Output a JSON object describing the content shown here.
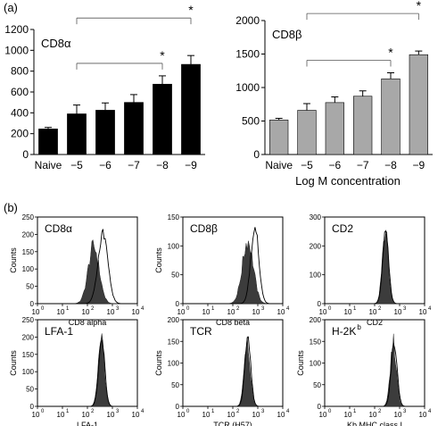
{
  "panel_labels": {
    "a": "(a)",
    "b": "(b)"
  },
  "colors": {
    "cd8a_bar": "#000000",
    "cd8b_bar": "#a8a8a8",
    "histogram_fill": "#3c3c3c",
    "line": "#000000"
  },
  "chart_data": [
    {
      "id": "cd8a_bar",
      "type": "bar",
      "title": "CD8α",
      "xlabel": "",
      "categories": [
        "Naive",
        "−5",
        "−6",
        "−7",
        "−8",
        "−9"
      ],
      "values": [
        245,
        390,
        425,
        500,
        675,
        865
      ],
      "errors": [
        15,
        85,
        70,
        75,
        80,
        85
      ],
      "ylim": [
        0,
        1200
      ],
      "yticks": [
        "0",
        "200",
        "400",
        "600",
        "800",
        "1000",
        "1200"
      ],
      "significance": [
        {
          "from": "−5",
          "to": "−8",
          "label": "*"
        },
        {
          "from": "−5",
          "to": "−9",
          "label": "*"
        }
      ]
    },
    {
      "id": "cd8b_bar",
      "type": "bar",
      "title": "CD8β",
      "xlabel": "Log M concentration",
      "categories": [
        "Naive",
        "−5",
        "−6",
        "−7",
        "−8",
        "−9"
      ],
      "values": [
        515,
        660,
        775,
        870,
        1130,
        1490
      ],
      "errors": [
        25,
        100,
        85,
        80,
        90,
        55
      ],
      "ylim": [
        0,
        2000
      ],
      "yticks": [
        "0",
        "500",
        "1000",
        "1500",
        "2000"
      ],
      "significance": [
        {
          "from": "−5",
          "to": "−8",
          "label": "*"
        },
        {
          "from": "−5",
          "to": "−9",
          "label": "*"
        }
      ]
    },
    {
      "id": "hist_cd8a",
      "type": "area",
      "title": "CD8α",
      "xlabel": "CD8 alpha",
      "ylabel": "Counts",
      "ylim": [
        0,
        250
      ],
      "yticks": [
        "0",
        "50",
        "100",
        "150",
        "200",
        "250"
      ],
      "xscale": "log",
      "xlim": [
        1,
        10000
      ],
      "xticks": [
        {
          "base": "10",
          "exp": "0"
        },
        {
          "base": "10",
          "exp": "1"
        },
        {
          "base": "10",
          "exp": "2"
        },
        {
          "base": "10",
          "exp": "3"
        },
        {
          "base": "10",
          "exp": "4"
        }
      ],
      "filled_peak": {
        "center": 2.25,
        "width": 0.22,
        "height": 170
      },
      "open_peak": {
        "center": 2.62,
        "width": 0.2,
        "height": 205
      }
    },
    {
      "id": "hist_cd8b",
      "type": "area",
      "title": "CD8β",
      "xlabel": "CD8 beta",
      "ylabel": "Counts",
      "ylim": [
        0,
        150
      ],
      "yticks": [
        "0",
        "50",
        "100",
        "150"
      ],
      "xscale": "log",
      "xlim": [
        1,
        10000
      ],
      "xticks": [
        {
          "base": "10",
          "exp": "0"
        },
        {
          "base": "10",
          "exp": "1"
        },
        {
          "base": "10",
          "exp": "2"
        },
        {
          "base": "10",
          "exp": "3"
        },
        {
          "base": "10",
          "exp": "4"
        }
      ],
      "filled_peak": {
        "center": 2.6,
        "width": 0.22,
        "height": 112
      },
      "open_peak": {
        "center": 2.88,
        "width": 0.16,
        "height": 135
      }
    },
    {
      "id": "hist_cd2",
      "type": "area",
      "title": "CD2",
      "xlabel": "CD2",
      "ylabel": "",
      "ylim": [
        0,
        300
      ],
      "yticks": [
        "0",
        "100",
        "200",
        "300"
      ],
      "xscale": "log",
      "xlim": [
        1,
        10000
      ],
      "xticks": [
        {
          "base": "10",
          "exp": "0"
        },
        {
          "base": "10",
          "exp": "1"
        },
        {
          "base": "10",
          "exp": "2"
        },
        {
          "base": "10",
          "exp": "3"
        },
        {
          "base": "10",
          "exp": "4"
        }
      ],
      "filled_peak": {
        "center": 2.42,
        "width": 0.12,
        "height": 265
      },
      "open_peak": {
        "center": 2.44,
        "width": 0.12,
        "height": 255
      }
    },
    {
      "id": "hist_lfa1",
      "type": "area",
      "title": "LFA-1",
      "xlabel": "LFA-1",
      "ylabel": "Counts",
      "ylim": [
        0,
        250
      ],
      "yticks": [
        "0",
        "50",
        "100",
        "150",
        "200",
        "250"
      ],
      "xscale": "log",
      "xlim": [
        1,
        10000
      ],
      "xticks": [
        {
          "base": "10",
          "exp": "0"
        },
        {
          "base": "10",
          "exp": "1"
        },
        {
          "base": "10",
          "exp": "2"
        },
        {
          "base": "10",
          "exp": "3"
        },
        {
          "base": "10",
          "exp": "4"
        }
      ],
      "filled_peak": {
        "center": 2.55,
        "width": 0.12,
        "height": 210
      },
      "open_peak": {
        "center": 2.57,
        "width": 0.12,
        "height": 205
      }
    },
    {
      "id": "hist_tcr",
      "type": "area",
      "title": "TCR",
      "xlabel": "TCR (H57)",
      "ylabel": "Counts",
      "ylim": [
        0,
        200
      ],
      "yticks": [
        "0",
        "50",
        "100",
        "150",
        "200"
      ],
      "xscale": "log",
      "xlim": [
        1,
        10000
      ],
      "xticks": [
        {
          "base": "10",
          "exp": "0"
        },
        {
          "base": "10",
          "exp": "1"
        },
        {
          "base": "10",
          "exp": "2"
        },
        {
          "base": "10",
          "exp": "3"
        },
        {
          "base": "10",
          "exp": "4"
        }
      ],
      "filled_peak": {
        "center": 2.57,
        "width": 0.12,
        "height": 160
      },
      "open_peak": {
        "center": 2.6,
        "width": 0.12,
        "height": 158
      }
    },
    {
      "id": "hist_h2kb",
      "type": "area",
      "title": "H-2K",
      "title_sup": "b",
      "xlabel": "Kb MHC class I",
      "ylabel": "Counts",
      "ylim": [
        0,
        200
      ],
      "yticks": [
        "0",
        "50",
        "100",
        "150",
        "200"
      ],
      "xscale": "log",
      "xlim": [
        1,
        10000
      ],
      "xticks": [
        {
          "base": "10",
          "exp": "0"
        },
        {
          "base": "10",
          "exp": "1"
        },
        {
          "base": "10",
          "exp": "2"
        },
        {
          "base": "10",
          "exp": "3"
        },
        {
          "base": "10",
          "exp": "4"
        }
      ],
      "filled_peak": {
        "center": 2.75,
        "width": 0.12,
        "height": 150
      },
      "open_peak": {
        "center": 2.78,
        "width": 0.12,
        "height": 148
      }
    }
  ]
}
